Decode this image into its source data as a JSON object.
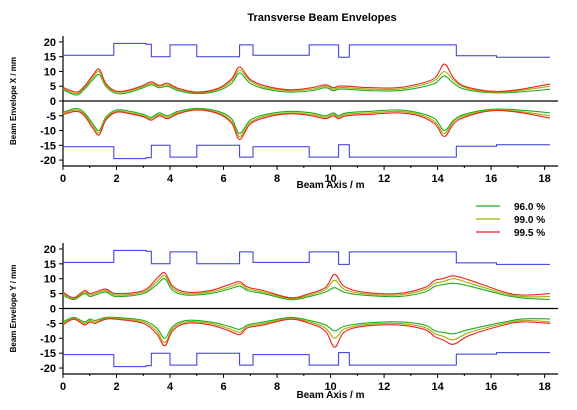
{
  "title": "Transverse Beam Envelopes",
  "legend": {
    "placement": "right, between panels",
    "entries": [
      {
        "label": "96.0  %",
        "color": "#22aa22"
      },
      {
        "label": "99.0  %",
        "color": "#a0b000"
      },
      {
        "label": "99.5  %",
        "color": "#ee2222"
      }
    ]
  },
  "colors": {
    "aperture": "#3333dd",
    "env96": "#22aa22",
    "env99": "#a0b000",
    "env995": "#ee2222"
  },
  "chart_data": [
    {
      "type": "line",
      "ylabel": "Beam Envelope  X  / mm",
      "xlabel": "Beam Axis  / m",
      "xlim": [
        0,
        18.5
      ],
      "ylim": [
        -22,
        22
      ],
      "xticks": [
        0,
        2,
        4,
        6,
        8,
        10,
        12,
        14,
        16,
        18
      ],
      "yticks": [
        20,
        15,
        10,
        5,
        0,
        -5,
        -10,
        -15,
        -20
      ],
      "aperture": {
        "name": "aperture",
        "x": [
          0,
          1.9,
          1.9,
          3.1,
          3.1,
          3.3,
          3.3,
          4.0,
          4.0,
          5.0,
          5.0,
          6.6,
          6.6,
          7.1,
          7.1,
          9.2,
          9.2,
          10.3,
          10.3,
          10.7,
          10.7,
          14.7,
          14.7,
          16.2,
          16.2,
          18.2
        ],
        "y": [
          15.5,
          15.5,
          19.5,
          19.5,
          19.2,
          19.2,
          15.0,
          15.0,
          19.0,
          19.0,
          15.0,
          15.0,
          19.0,
          19.0,
          15.5,
          15.5,
          19.0,
          19.0,
          14.8,
          14.8,
          19.0,
          19.0,
          15.3,
          15.3,
          14.8,
          14.8
        ],
        "y_lower": [
          -15.5,
          -15.5,
          -19.5,
          -19.5,
          -19.2,
          -19.2,
          -15.0,
          -15.0,
          -19.0,
          -19.0,
          -15.0,
          -15.0,
          -19.0,
          -19.0,
          -15.5,
          -15.5,
          -19.0,
          -19.0,
          -14.8,
          -14.8,
          -19.0,
          -19.0,
          -15.3,
          -15.3,
          -14.8,
          -14.8
        ]
      },
      "x": [
        0,
        0.5,
        0.8,
        1.1,
        1.35,
        1.6,
        2.0,
        2.5,
        3.0,
        3.3,
        3.6,
        3.9,
        4.3,
        5.0,
        5.8,
        6.3,
        6.6,
        7.0,
        7.6,
        8.5,
        9.3,
        9.8,
        10.1,
        10.3,
        10.6,
        11.5,
        12.5,
        13.3,
        13.9,
        14.25,
        14.6,
        15.0,
        16.0,
        17.0,
        18.2
      ],
      "series": [
        {
          "name": "96.0  %",
          "upper": [
            3.8,
            2.0,
            4.0,
            7.0,
            9.0,
            5.0,
            2.5,
            3.0,
            4.5,
            5.5,
            4.5,
            5.0,
            3.5,
            2.5,
            3.5,
            6.0,
            9.5,
            6.0,
            4.0,
            3.0,
            3.5,
            4.5,
            3.5,
            4.0,
            4.0,
            3.5,
            3.5,
            4.5,
            6.0,
            8.5,
            6.0,
            4.0,
            2.8,
            3.0,
            4.0
          ],
          "lower": [
            -3.8,
            -2.5,
            -4.0,
            -7.5,
            -10.0,
            -5.5,
            -3.0,
            -3.5,
            -4.5,
            -5.5,
            -4.0,
            -5.0,
            -3.5,
            -2.5,
            -3.5,
            -6.0,
            -11.0,
            -6.5,
            -4.5,
            -3.5,
            -4.0,
            -5.0,
            -4.0,
            -5.0,
            -4.0,
            -3.5,
            -3.0,
            -4.0,
            -6.0,
            -10.0,
            -6.5,
            -4.5,
            -2.8,
            -3.0,
            -4.0
          ]
        },
        {
          "name": "99.0  %",
          "upper": [
            4.2,
            2.5,
            4.5,
            7.8,
            10.0,
            5.5,
            3.0,
            3.5,
            5.0,
            6.0,
            5.0,
            5.5,
            4.0,
            2.8,
            4.0,
            6.8,
            10.5,
            6.8,
            4.5,
            3.5,
            4.0,
            5.0,
            4.0,
            4.5,
            4.5,
            4.0,
            4.0,
            5.2,
            7.0,
            10.0,
            7.0,
            4.6,
            3.0,
            3.5,
            5.0
          ],
          "lower": [
            -4.2,
            -3.0,
            -4.5,
            -8.2,
            -10.8,
            -6.0,
            -3.5,
            -4.0,
            -5.0,
            -6.0,
            -4.5,
            -5.5,
            -4.0,
            -2.8,
            -4.0,
            -6.8,
            -12.0,
            -7.2,
            -5.0,
            -4.0,
            -4.5,
            -5.5,
            -4.5,
            -5.5,
            -4.5,
            -4.0,
            -3.5,
            -4.5,
            -7.0,
            -11.0,
            -7.0,
            -5.0,
            -3.0,
            -3.5,
            -5.0
          ]
        },
        {
          "name": "99.5  %",
          "upper": [
            4.6,
            3.0,
            5.0,
            8.5,
            10.8,
            6.0,
            3.3,
            3.8,
            5.3,
            6.5,
            5.3,
            6.0,
            4.3,
            3.0,
            4.3,
            7.5,
            11.5,
            7.3,
            5.0,
            3.8,
            4.5,
            5.5,
            4.5,
            5.0,
            5.0,
            4.5,
            4.5,
            5.8,
            7.8,
            12.5,
            7.8,
            5.0,
            3.3,
            3.8,
            5.8
          ],
          "lower": [
            -4.6,
            -3.5,
            -5.0,
            -9.0,
            -11.5,
            -6.5,
            -3.8,
            -4.3,
            -5.3,
            -6.5,
            -5.0,
            -6.0,
            -4.3,
            -3.0,
            -4.3,
            -7.5,
            -13.0,
            -7.8,
            -5.5,
            -4.3,
            -5.0,
            -6.0,
            -5.0,
            -6.0,
            -5.0,
            -4.5,
            -4.0,
            -5.0,
            -7.8,
            -12.0,
            -7.8,
            -5.5,
            -3.3,
            -3.8,
            -5.8
          ]
        }
      ]
    },
    {
      "type": "line",
      "ylabel": "Beam Envelope  Y  / mm",
      "xlabel": "Beam Axis  / m",
      "xlim": [
        0,
        18.5
      ],
      "ylim": [
        -22,
        22
      ],
      "xticks": [
        0,
        2,
        4,
        6,
        8,
        10,
        12,
        14,
        16,
        18
      ],
      "yticks": [
        20,
        15,
        10,
        5,
        0,
        -5,
        -10,
        -15,
        -20
      ],
      "aperture": {
        "name": "aperture",
        "x": [
          0,
          1.9,
          1.9,
          3.1,
          3.1,
          3.3,
          3.3,
          4.0,
          4.0,
          5.0,
          5.0,
          6.6,
          6.6,
          7.1,
          7.1,
          9.2,
          9.2,
          10.3,
          10.3,
          10.7,
          10.7,
          14.7,
          14.7,
          16.2,
          16.2,
          18.2
        ],
        "y": [
          15.5,
          15.5,
          19.5,
          19.5,
          19.2,
          19.2,
          15.0,
          15.0,
          19.0,
          19.0,
          15.0,
          15.0,
          19.0,
          19.0,
          15.5,
          15.5,
          19.0,
          19.0,
          14.8,
          14.8,
          19.0,
          19.0,
          15.3,
          15.3,
          14.8,
          14.8
        ],
        "y_lower": [
          -15.5,
          -15.5,
          -19.5,
          -19.5,
          -19.2,
          -19.2,
          -15.0,
          -15.0,
          -19.0,
          -19.0,
          -15.0,
          -15.0,
          -19.0,
          -19.0,
          -15.5,
          -15.5,
          -19.0,
          -19.0,
          -14.8,
          -14.8,
          -19.0,
          -19.0,
          -15.3,
          -15.3,
          -14.8,
          -14.8
        ]
      },
      "x": [
        0,
        0.4,
        0.8,
        1.0,
        1.2,
        1.6,
        2.0,
        3.0,
        3.5,
        3.8,
        4.1,
        4.6,
        5.5,
        6.2,
        6.6,
        6.9,
        7.5,
        8.5,
        9.2,
        9.8,
        10.15,
        10.5,
        11.2,
        12.5,
        13.5,
        13.9,
        14.2,
        14.6,
        15.2,
        16.5,
        17.2,
        18.2
      ],
      "series": [
        {
          "name": "96.0  %",
          "upper": [
            4.5,
            3.0,
            5.0,
            4.0,
            4.5,
            5.5,
            4.0,
            5.0,
            8.0,
            10.0,
            6.0,
            4.5,
            5.0,
            6.5,
            7.5,
            6.0,
            5.0,
            3.0,
            4.0,
            5.5,
            7.0,
            5.5,
            4.5,
            4.0,
            5.5,
            7.5,
            8.0,
            8.5,
            7.5,
            4.5,
            3.5,
            3.0
          ],
          "lower": [
            -4.5,
            -3.0,
            -4.5,
            -3.5,
            -4.0,
            -3.0,
            -3.0,
            -4.0,
            -6.5,
            -10.0,
            -6.0,
            -4.0,
            -4.5,
            -6.0,
            -7.0,
            -5.5,
            -4.5,
            -3.0,
            -4.0,
            -5.5,
            -7.5,
            -6.0,
            -5.0,
            -4.5,
            -5.5,
            -7.5,
            -8.0,
            -8.5,
            -7.0,
            -4.5,
            -3.5,
            -3.5
          ]
        },
        {
          "name": "99.0  %",
          "upper": [
            5.0,
            3.3,
            5.5,
            4.5,
            5.0,
            6.0,
            4.5,
            5.5,
            9.0,
            11.0,
            6.8,
            5.0,
            5.5,
            7.2,
            8.3,
            6.6,
            5.5,
            3.3,
            4.5,
            6.3,
            9.5,
            6.5,
            5.0,
            4.5,
            6.3,
            8.5,
            9.0,
            10.0,
            8.5,
            5.0,
            4.0,
            4.0
          ],
          "lower": [
            -5.0,
            -3.3,
            -5.0,
            -4.0,
            -4.5,
            -3.3,
            -3.3,
            -4.5,
            -7.5,
            -11.5,
            -6.8,
            -4.5,
            -5.0,
            -6.8,
            -8.0,
            -6.0,
            -5.0,
            -3.3,
            -4.5,
            -6.5,
            -10.0,
            -7.0,
            -5.5,
            -5.0,
            -6.3,
            -8.5,
            -9.3,
            -10.5,
            -8.0,
            -5.0,
            -4.0,
            -4.5
          ]
        },
        {
          "name": "99.5  %",
          "upper": [
            5.5,
            3.6,
            6.0,
            5.0,
            5.5,
            6.5,
            5.0,
            6.0,
            10.0,
            12.0,
            7.5,
            5.5,
            6.0,
            8.0,
            9.0,
            7.2,
            6.0,
            3.6,
            5.0,
            7.0,
            11.5,
            7.5,
            5.5,
            5.0,
            7.0,
            9.5,
            10.0,
            11.0,
            9.5,
            5.5,
            4.5,
            5.0
          ],
          "lower": [
            -5.5,
            -3.6,
            -5.5,
            -4.5,
            -5.0,
            -3.6,
            -3.6,
            -5.0,
            -8.5,
            -12.5,
            -7.5,
            -5.0,
            -5.5,
            -7.5,
            -8.8,
            -6.5,
            -5.5,
            -3.6,
            -5.0,
            -7.5,
            -13.0,
            -8.0,
            -6.0,
            -5.5,
            -7.0,
            -9.5,
            -10.5,
            -12.0,
            -9.0,
            -5.5,
            -4.5,
            -5.0
          ]
        }
      ]
    }
  ]
}
